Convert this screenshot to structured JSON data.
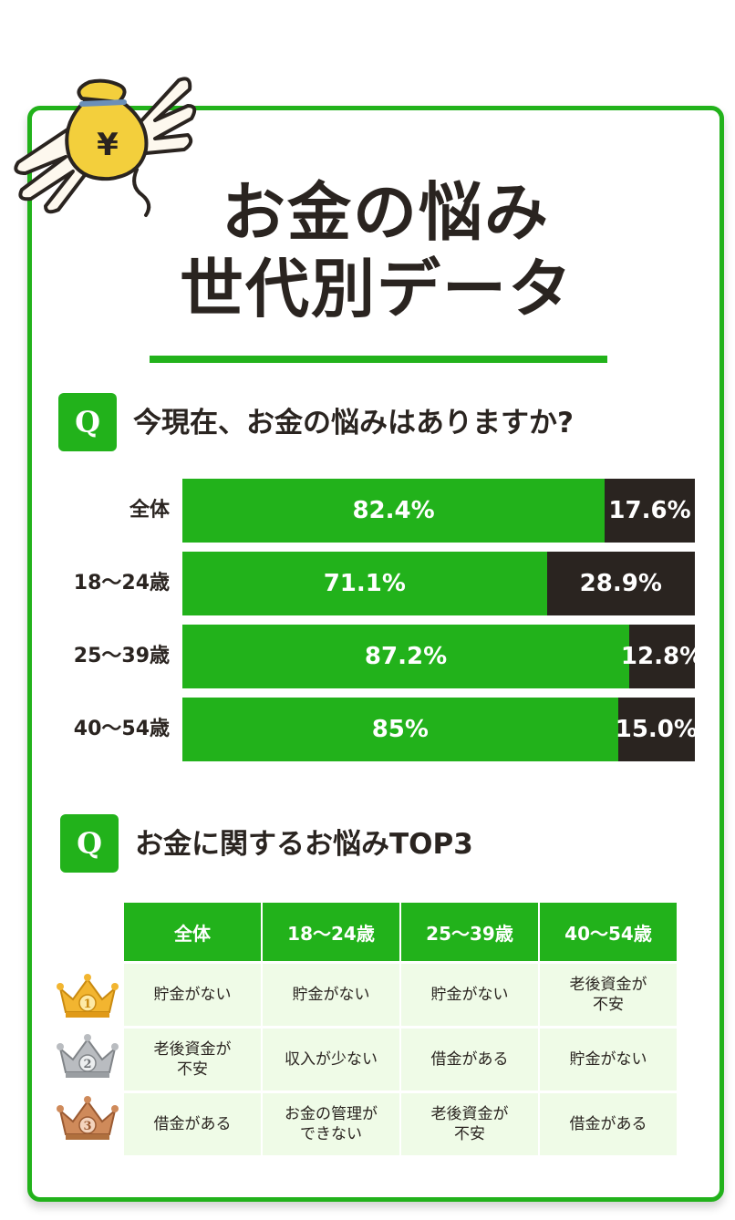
{
  "title": {
    "line1": "お金の悩み",
    "line2": "世代別データ"
  },
  "money_bag": {
    "symbol": "¥",
    "icon": "flying-money-bag-icon"
  },
  "q1": {
    "badge": "Q",
    "text": "今現在、お金の悩みはありますか?"
  },
  "chart_data": {
    "type": "bar",
    "stacked": true,
    "orientation": "horizontal",
    "categories": [
      "全体",
      "18〜24歳",
      "25〜39歳",
      "40〜54歳"
    ],
    "series": [
      {
        "values": [
          82.4,
          71.1,
          87.2,
          85
        ],
        "labels": [
          "82.4%",
          "71.1%",
          "87.2%",
          "85%"
        ],
        "color": "#22b21b"
      },
      {
        "values": [
          17.6,
          28.9,
          12.8,
          15.0
        ],
        "labels": [
          "17.6%",
          "28.9%",
          "12.8%",
          "15.0%"
        ],
        "color": "#2a2420"
      }
    ],
    "xlim": [
      0,
      100
    ]
  },
  "q2": {
    "badge": "Q",
    "text": "お金に関するお悩みTOP3"
  },
  "top3": {
    "headers": [
      "全体",
      "18〜24歳",
      "25〜39歳",
      "40〜54歳"
    ],
    "rows": [
      {
        "rank": "1",
        "crown": "gold",
        "cells": [
          "貯金がない",
          "貯金がない",
          "貯金がない",
          "老後資金が\n不安"
        ]
      },
      {
        "rank": "2",
        "crown": "silver",
        "cells": [
          "老後資金が\n不安",
          "収入が少ない",
          "借金がある",
          "貯金がない"
        ]
      },
      {
        "rank": "3",
        "crown": "bronze",
        "cells": [
          "借金がある",
          "お金の管理が\nできない",
          "老後資金が\n不安",
          "借金がある"
        ]
      }
    ]
  },
  "colors": {
    "accent": "#22b21b",
    "dark": "#2a2420",
    "cell_bg": "#effbe7"
  }
}
